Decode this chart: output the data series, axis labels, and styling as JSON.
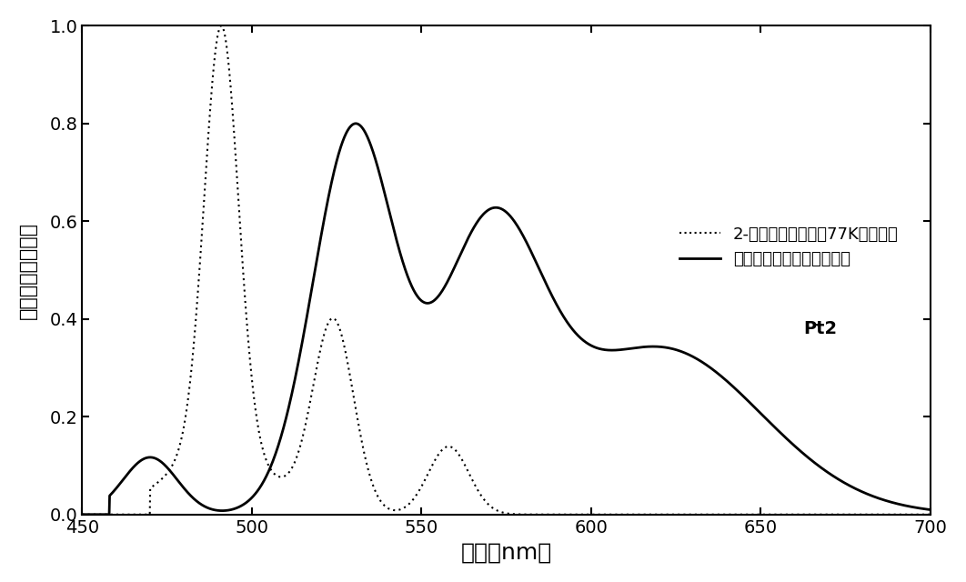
{
  "xlim": [
    450,
    700
  ],
  "ylim": [
    0.0,
    1.0
  ],
  "xlabel": "波长（nm）",
  "ylabel": "归一化的发光强度",
  "legend1": "2-甲基四氢咄嘎中的77K发射光谱",
  "legend2": "二氯甲烷中的室温发射光谱",
  "xticks": [
    450,
    500,
    550,
    600,
    650,
    700
  ],
  "yticks": [
    0.0,
    0.2,
    0.4,
    0.6,
    0.8,
    1.0
  ],
  "background": "#ffffff",
  "line_color": "#000000"
}
